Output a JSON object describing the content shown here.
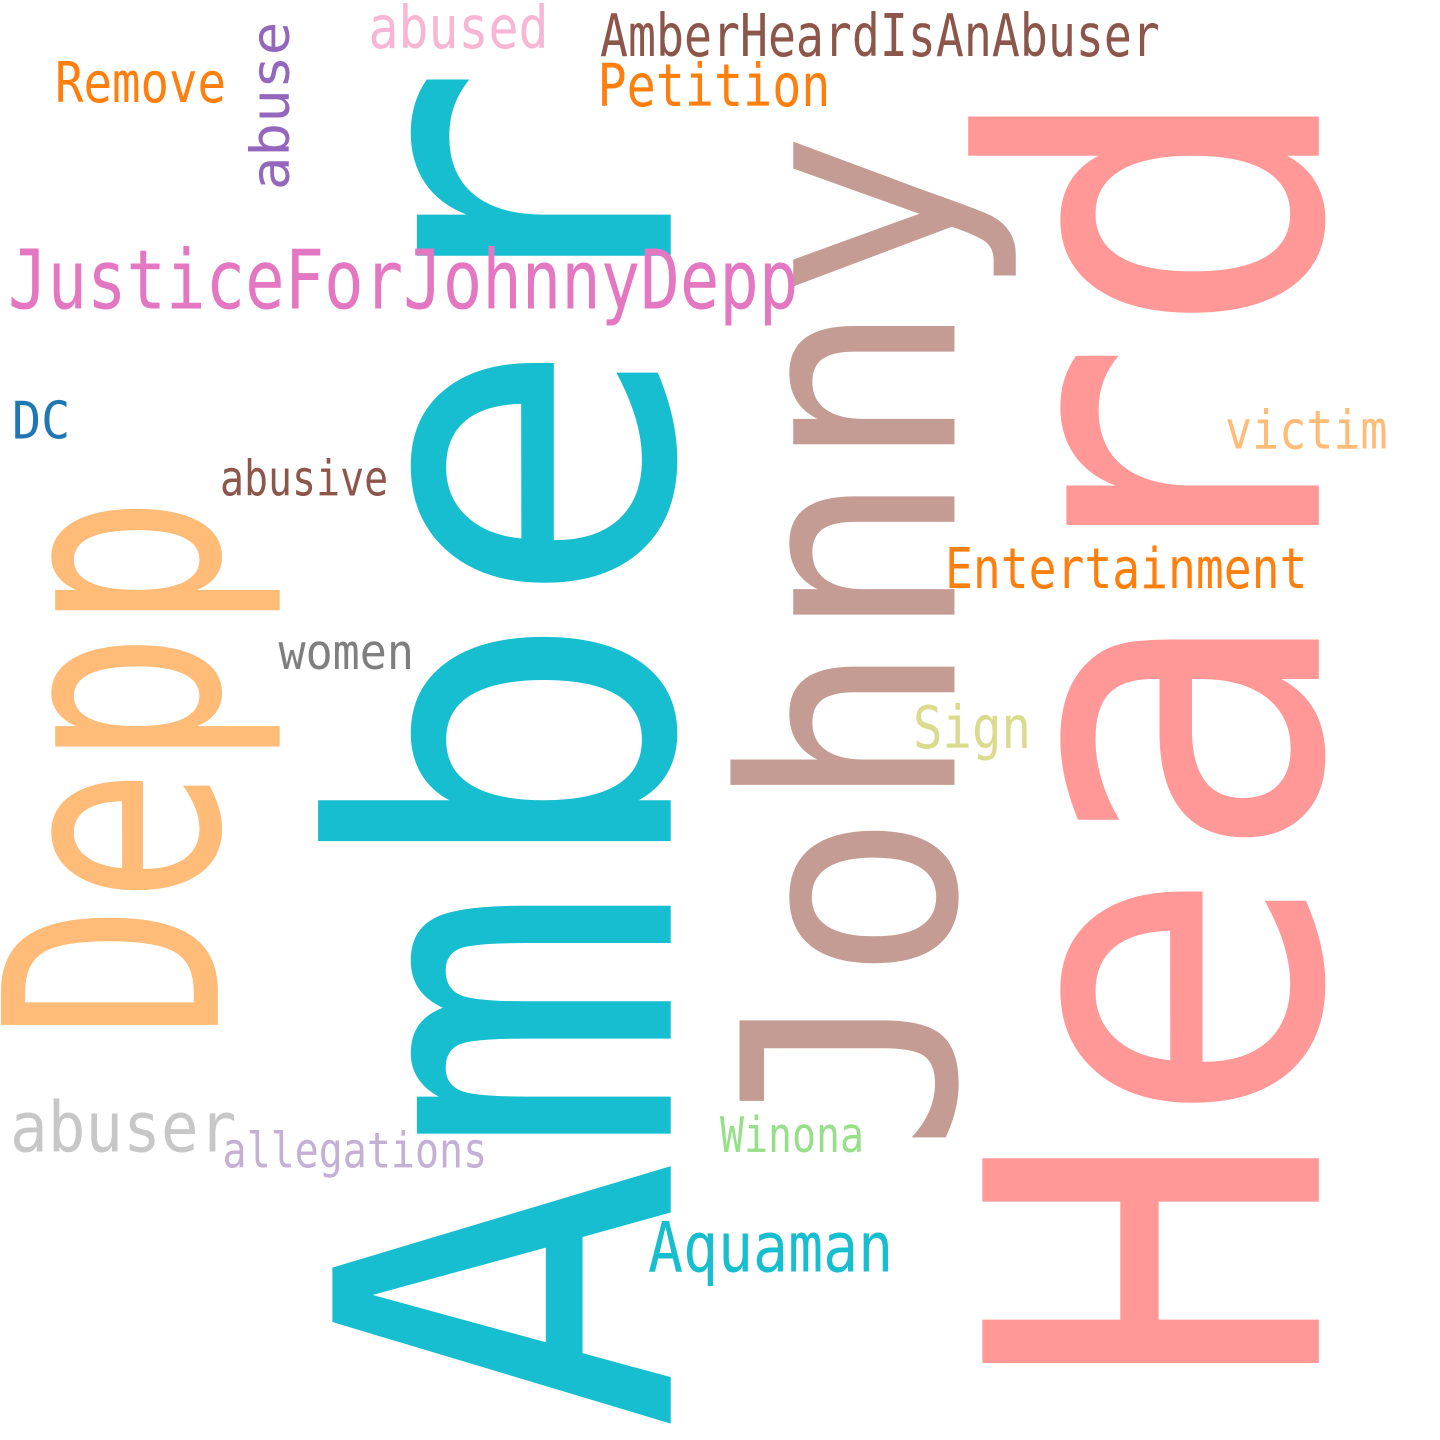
{
  "cloud": {
    "words": [
      {
        "text": "Amber",
        "color": "#17becf",
        "rotated": true
      },
      {
        "text": "Heard",
        "color": "#ff9896",
        "rotated": true
      },
      {
        "text": "Johnny",
        "color": "#c49c94",
        "rotated": true
      },
      {
        "text": "Depp",
        "color": "#ffbb78",
        "rotated": true
      },
      {
        "text": "JusticeForJohnnyDepp",
        "color": "#e377c2",
        "rotated": false
      },
      {
        "text": "AmberHeardIsAnAbuser",
        "color": "#8c564b",
        "rotated": false
      },
      {
        "text": "abused",
        "color": "#f7b6d2",
        "rotated": false
      },
      {
        "text": "abuse",
        "color": "#9467bd",
        "rotated": true
      },
      {
        "text": "Remove",
        "color": "#ff7f0e",
        "rotated": false
      },
      {
        "text": "Petition",
        "color": "#ff7f0e",
        "rotated": false
      },
      {
        "text": "DC",
        "color": "#1f77b4",
        "rotated": false
      },
      {
        "text": "abusive",
        "color": "#8c564b",
        "rotated": false
      },
      {
        "text": "victim",
        "color": "#ffbb78",
        "rotated": false
      },
      {
        "text": "Entertainment",
        "color": "#ff7f0e",
        "rotated": false
      },
      {
        "text": "women",
        "color": "#7f7f7f",
        "rotated": false
      },
      {
        "text": "Sign",
        "color": "#dbdb8d",
        "rotated": false
      },
      {
        "text": "abuser",
        "color": "#c7c7c7",
        "rotated": false
      },
      {
        "text": "allegations",
        "color": "#c5b0d5",
        "rotated": false
      },
      {
        "text": "Winona",
        "color": "#98df8a",
        "rotated": false
      },
      {
        "text": "Aquaman",
        "color": "#17becf",
        "rotated": false
      }
    ]
  }
}
